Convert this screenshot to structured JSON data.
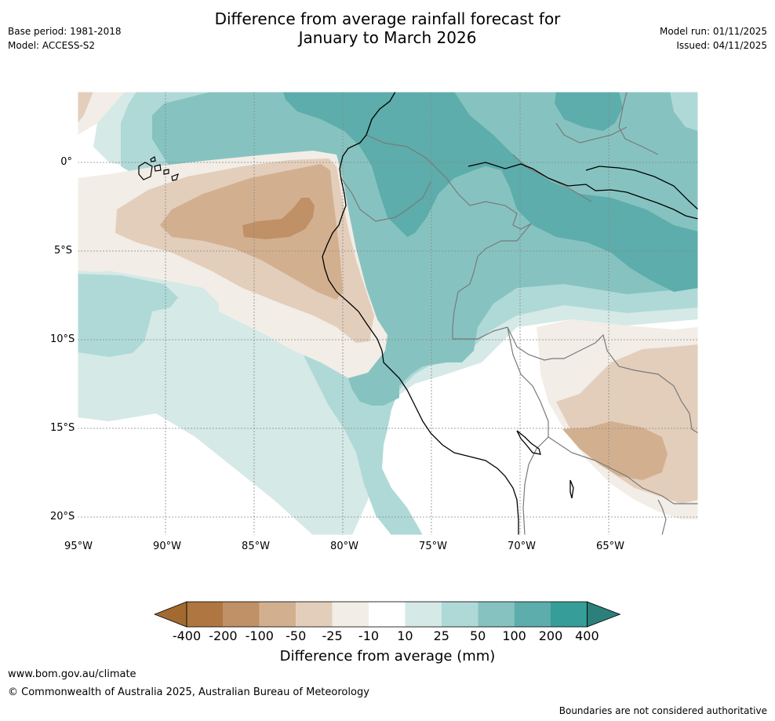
{
  "title_line1": "Difference from average rainfall forecast for",
  "title_line2": "January to March 2026",
  "meta_left": {
    "base_period": "Base period: 1981-2018",
    "model": "Model: ACCESS-S2"
  },
  "meta_right": {
    "model_run": "Model run: 01/11/2025",
    "issued": "Issued: 04/11/2025"
  },
  "lat_labels": [
    "0°",
    "5°S",
    "10°S",
    "15°S",
    "20°S"
  ],
  "lon_labels": [
    "95°W",
    "90°W",
    "85°W",
    "80°W",
    "75°W",
    "70°W",
    "65°W"
  ],
  "colorbar": {
    "labels": [
      "-400",
      "-200",
      "-100",
      "-50",
      "-25",
      "-10",
      "10",
      "25",
      "50",
      "100",
      "200",
      "400"
    ],
    "colors": [
      "#a26a30",
      "#b07641",
      "#c09066",
      "#d2b08f",
      "#e3cebb",
      "#f2ede6",
      "#ffffff",
      "#d5e9e7",
      "#afd9d7",
      "#86c3c0",
      "#5cadab",
      "#369d98",
      "#2c7f7b"
    ],
    "title": "Difference from average (mm)"
  },
  "footer": {
    "url": "www.bom.gov.au/climate",
    "copyright": "© Commonwealth of Australia 2025, Australian Bureau of Meteorology",
    "disclaimer": "Boundaries are not considered authoritative"
  },
  "map_colors": {
    "land_outline": "#000000",
    "border": "#7a7a7a",
    "grid": "#888888"
  }
}
